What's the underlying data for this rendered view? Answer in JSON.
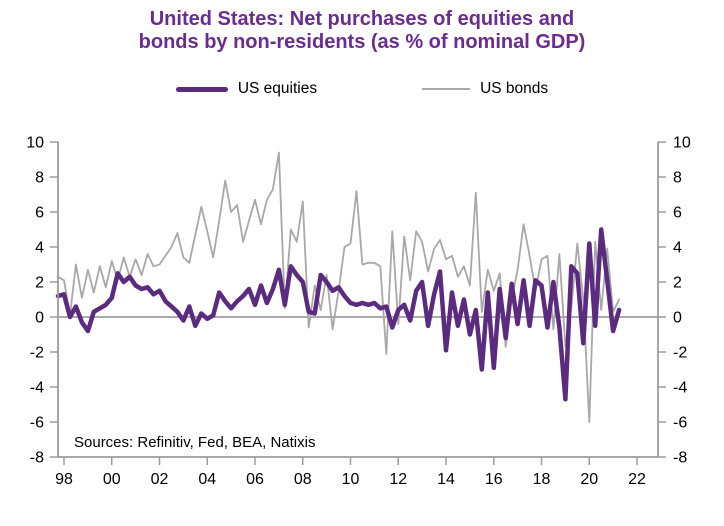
{
  "title": {
    "line1": "United States: Net purchases of equities and",
    "line2": "bonds by non-residents (as % of nominal GDP)",
    "color": "#6b2c91"
  },
  "legend": [
    {
      "id": "equities",
      "label": "US equities",
      "color": "#5b2b80",
      "thickness": 5
    },
    {
      "id": "bonds",
      "label": "US bonds",
      "color": "#a8a8a8",
      "thickness": 2
    }
  ],
  "source_note": "Sources: Refinitiv, Fed, BEA, Natixis",
  "colors": {
    "equities_line": "#5b2b80",
    "bonds_line": "#a8a8a8",
    "axis": "#9c9c9c",
    "zero_line": "#8f8f8f",
    "title_text": "#6b2c91",
    "label_text": "#000000"
  },
  "chart_data": {
    "type": "line",
    "title": "United States: Net purchases of equities and bonds by non-residents (as % of nominal GDP)",
    "frequency": "quarterly",
    "x_start_year": 1997.75,
    "x_step_years": 0.25,
    "x_axis": {
      "tick_years": [
        1998,
        2000,
        2002,
        2004,
        2006,
        2008,
        2010,
        2012,
        2014,
        2016,
        2018,
        2020,
        2022
      ],
      "tick_labels": [
        "98",
        "00",
        "02",
        "04",
        "06",
        "08",
        "10",
        "12",
        "14",
        "16",
        "18",
        "20",
        "22"
      ]
    },
    "y_axis": {
      "min": -8,
      "max": 10,
      "tick_step": 2,
      "tick_values": [
        10,
        8,
        6,
        4,
        2,
        0,
        -2,
        -4,
        -6,
        -8
      ],
      "tick_labels": [
        "10",
        "8",
        "6",
        "4",
        "2",
        "0",
        "-2",
        "-4",
        "-6",
        "-8"
      ],
      "sides": [
        "left",
        "right"
      ]
    },
    "grid": false,
    "zero_line": true,
    "legend_position": "top",
    "series": [
      {
        "name": "US equities",
        "color": "#5b2b80",
        "width": 4.5,
        "values": [
          1.2,
          1.3,
          0.0,
          0.6,
          -0.3,
          -0.8,
          0.3,
          0.5,
          0.7,
          1.1,
          2.5,
          2.0,
          2.3,
          1.8,
          1.6,
          1.7,
          1.3,
          1.5,
          0.9,
          0.6,
          0.3,
          -0.2,
          0.6,
          -0.5,
          0.2,
          -0.1,
          0.1,
          1.4,
          0.9,
          0.5,
          0.9,
          1.2,
          1.6,
          0.7,
          1.8,
          0.8,
          1.6,
          2.7,
          0.7,
          2.9,
          2.4,
          2.0,
          0.3,
          0.2,
          2.4,
          2.0,
          1.5,
          1.7,
          1.2,
          0.8,
          0.7,
          0.8,
          0.7,
          0.8,
          0.5,
          0.6,
          -0.6,
          0.4,
          0.7,
          -0.2,
          1.5,
          2.0,
          -0.5,
          1.3,
          2.6,
          -1.9,
          1.4,
          -0.5,
          1.0,
          -1.0,
          0.4,
          -3.0,
          1.4,
          -2.9,
          1.6,
          -1.2,
          1.9,
          -0.4,
          2.1,
          -0.5,
          2.1,
          1.8,
          -0.6,
          2.0,
          -0.6,
          -4.7,
          2.9,
          2.5,
          -1.5,
          4.2,
          -0.5,
          5.0,
          2.1,
          -0.8,
          0.4
        ]
      },
      {
        "name": "US bonds",
        "color": "#a8a8a8",
        "width": 1.8,
        "values": [
          2.3,
          2.1,
          0.1,
          3.0,
          1.1,
          2.7,
          1.4,
          2.9,
          1.7,
          3.2,
          2.1,
          3.4,
          2.3,
          3.3,
          2.4,
          3.6,
          2.9,
          3.0,
          3.5,
          4.0,
          4.8,
          3.4,
          3.1,
          4.7,
          6.3,
          4.9,
          3.4,
          5.5,
          7.8,
          6.0,
          6.4,
          4.3,
          5.5,
          6.7,
          5.3,
          6.7,
          7.3,
          9.4,
          0.5,
          5.0,
          4.3,
          6.6,
          -0.6,
          1.8,
          0.4,
          2.4,
          -0.7,
          1.5,
          4.0,
          4.2,
          7.2,
          3.0,
          3.1,
          3.1,
          2.9,
          -2.1,
          4.9,
          -0.4,
          4.6,
          2.1,
          4.9,
          4.3,
          2.6,
          3.9,
          4.4,
          3.3,
          3.5,
          2.3,
          2.9,
          1.8,
          7.1,
          0.3,
          2.7,
          1.5,
          2.5,
          -1.7,
          1.0,
          2.7,
          5.3,
          3.5,
          1.5,
          3.3,
          3.5,
          -0.7,
          3.6,
          -1.7,
          0.5,
          4.2,
          1.0,
          -6.0,
          4.3,
          0.4,
          3.9,
          0.3,
          1.0
        ]
      }
    ]
  }
}
